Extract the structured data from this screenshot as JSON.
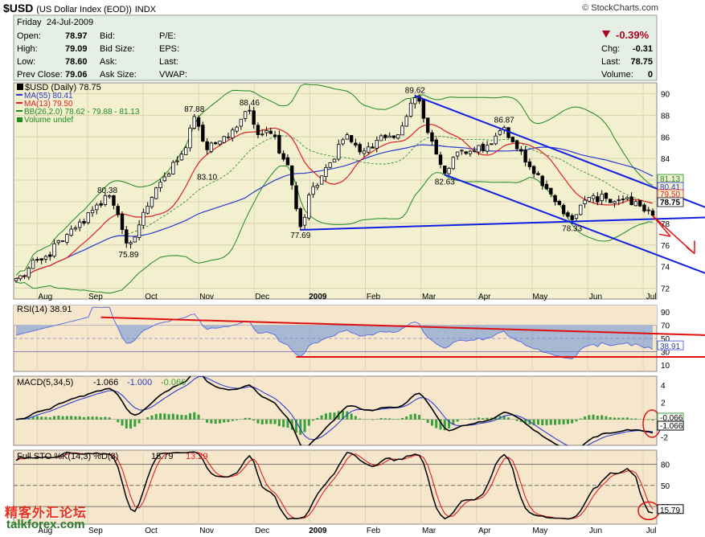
{
  "header": {
    "symbol": "$USD",
    "name": "(US Dollar Index (EOD))",
    "exchange": "INDX",
    "copyright": "© StockCharts.com"
  },
  "quote": {
    "day": "Friday",
    "date": "24-Jul-2009",
    "open_label": "Open:",
    "open": "78.97",
    "high_label": "High:",
    "high": "79.09",
    "low_label": "Low:",
    "low": "78.60",
    "prev_close_label": "Prev Close:",
    "prev_close": "79.06",
    "bid_label": "Bid:",
    "bid_size_label": "Bid Size:",
    "ask_label": "Ask:",
    "ask_size_label": "Ask Size:",
    "pe_label": "P/E:",
    "eps_label": "EPS:",
    "last_label2": "Last:",
    "vwap_label": "VWAP:",
    "change_pct": "-0.39%",
    "chg_label": "Chg:",
    "chg": "-0.31",
    "last_label": "Last:",
    "last": "78.75",
    "volume_label": "Volume:",
    "volume": "0"
  },
  "colors": {
    "price_bg": "#f3f0d0",
    "panel_bg": "#f5e6cc",
    "header_bg": "#e5efe5",
    "candle": "#000000",
    "ma55": "#2a3ad0",
    "ma13": "#e02020",
    "bb": "#1e8a1e",
    "trend_blue": "#1020e0",
    "trend_red": "#e01010",
    "rsi": "#6070e0",
    "macd": "#000000",
    "macd_signal": "#3040d0",
    "macd_hist": "#3aa03a",
    "sto_k": "#000000",
    "sto_d": "#e02020"
  },
  "chart_data": [
    {
      "type": "candlestick",
      "title": "$USD (Daily) 78.75",
      "legend": [
        {
          "name": "$USD (Daily) 78.75"
        },
        {
          "name": "MA(55) 80.41"
        },
        {
          "name": "MA(13) 79.50"
        },
        {
          "name": "BB(26,2.0) 78.62 - 79.88 - 81.13"
        },
        {
          "name": "Volume undef"
        }
      ],
      "months": [
        "Aug",
        "Sep",
        "Oct",
        "Nov",
        "Dec",
        "2009",
        "Feb",
        "Mar",
        "Apr",
        "May",
        "Jun",
        "Jul"
      ],
      "yticks": [
        72,
        74,
        76,
        78,
        80,
        82,
        84,
        86,
        88,
        90
      ],
      "ylim": [
        71,
        91
      ],
      "anchors": [
        {
          "t": 0,
          "v": 72.9
        },
        {
          "t": 6,
          "v": 74.6
        },
        {
          "t": 11,
          "v": 76.4
        },
        {
          "t": 14.5,
          "v": 77.8
        },
        {
          "t": 19,
          "v": 79.7
        },
        {
          "t": 21.5,
          "v": 80.38
        },
        {
          "t": 24,
          "v": 78.8
        },
        {
          "t": 26.5,
          "v": 75.89
        },
        {
          "t": 31,
          "v": 79.6
        },
        {
          "t": 35,
          "v": 82.3
        },
        {
          "t": 39,
          "v": 84.4
        },
        {
          "t": 42,
          "v": 87.88
        },
        {
          "t": 45,
          "v": 84.8
        },
        {
          "t": 48,
          "v": 85.6
        },
        {
          "t": 52,
          "v": 86.9
        },
        {
          "t": 55,
          "v": 88.46
        },
        {
          "t": 57,
          "v": 86.2
        },
        {
          "t": 60,
          "v": 86.3
        },
        {
          "t": 64,
          "v": 83.4
        },
        {
          "t": 67,
          "v": 77.69
        },
        {
          "t": 70,
          "v": 81.4
        },
        {
          "t": 74,
          "v": 83.6
        },
        {
          "t": 78,
          "v": 86.2
        },
        {
          "t": 82,
          "v": 84.7
        },
        {
          "t": 86,
          "v": 86.1
        },
        {
          "t": 90,
          "v": 86.2
        },
        {
          "t": 94,
          "v": 89.62
        },
        {
          "t": 98,
          "v": 85.6
        },
        {
          "t": 101,
          "v": 82.63
        },
        {
          "t": 104,
          "v": 84.6
        },
        {
          "t": 108,
          "v": 84.7
        },
        {
          "t": 112,
          "v": 85.3
        },
        {
          "t": 115,
          "v": 86.87
        },
        {
          "t": 118,
          "v": 84.9
        },
        {
          "t": 122,
          "v": 82.6
        },
        {
          "t": 127,
          "v": 80.0
        },
        {
          "t": 131,
          "v": 78.33
        },
        {
          "t": 135,
          "v": 80.4
        },
        {
          "t": 139,
          "v": 80.3
        },
        {
          "t": 143,
          "v": 80.2
        },
        {
          "t": 147,
          "v": 79.6
        },
        {
          "t": 150,
          "v": 78.75
        }
      ],
      "annotations": [
        {
          "label": "80.38",
          "t": 21.5,
          "v": 80.38,
          "pos": "above"
        },
        {
          "label": "75.89",
          "t": 26.5,
          "v": 75.89,
          "pos": "below"
        },
        {
          "label": "87.88",
          "t": 42,
          "v": 87.88,
          "pos": "above"
        },
        {
          "label": "83.10",
          "t": 45,
          "v": 83.1,
          "pos": "below"
        },
        {
          "label": "88.46",
          "t": 55,
          "v": 88.46,
          "pos": "above"
        },
        {
          "label": "77.69",
          "t": 67,
          "v": 77.69,
          "pos": "below"
        },
        {
          "label": "89.62",
          "t": 94,
          "v": 89.62,
          "pos": "above"
        },
        {
          "label": "82.63",
          "t": 101,
          "v": 82.63,
          "pos": "below"
        },
        {
          "label": "86.87",
          "t": 115,
          "v": 86.87,
          "pos": "above"
        },
        {
          "label": "78.33",
          "t": 131,
          "v": 78.33,
          "pos": "below"
        }
      ],
      "right_labels": [
        {
          "label": "81.13",
          "v": 81.13,
          "color": "#1e8a1e"
        },
        {
          "label": "80.41",
          "v": 80.41,
          "color": "#2a3ad0"
        },
        {
          "label": "79.50",
          "v": 79.5,
          "color": "#e02020"
        },
        {
          "label": "78.75",
          "v": 78.75,
          "color": "#000000"
        }
      ]
    },
    {
      "type": "line",
      "title": "RSI(14) 38.91",
      "yticks": [
        10,
        30,
        50,
        70,
        90
      ],
      "ylim": [
        0,
        100
      ],
      "value_label": "38.91"
    },
    {
      "type": "line",
      "title": "MACD(5,34,5) -1.066, -1.000, -0.066",
      "legend": [
        {
          "name": "MACD(5,34,5)",
          "value": "-1.066"
        },
        {
          "name": "",
          "value": "-1.000"
        },
        {
          "name": "",
          "value": "-0.066"
        }
      ],
      "yticks": [
        -2,
        0,
        2,
        4
      ],
      "ylim": [
        -3,
        5
      ],
      "value_labels": [
        "-0.066",
        "-1.066"
      ]
    },
    {
      "type": "line",
      "title": "Full STO %K(14,3) %D(3) 15.79, 13.29",
      "legend": [
        {
          "name": "Full STO %K(14,3) %D(3)",
          "value": "15.79"
        },
        {
          "name": "",
          "value": "13.29"
        }
      ],
      "yticks": [
        20,
        50,
        80
      ],
      "ylim": [
        -5,
        100
      ],
      "value_label": "15.79",
      "x_labels": [
        "Aug",
        "Sep",
        "Oct",
        "Nov",
        "Dec",
        "2009",
        "Feb",
        "Mar",
        "Apr",
        "May",
        "Jun",
        "Jul"
      ]
    }
  ],
  "watermark": {
    "text_cn": "精客外汇论坛",
    "text_en": "talkforex.com"
  }
}
